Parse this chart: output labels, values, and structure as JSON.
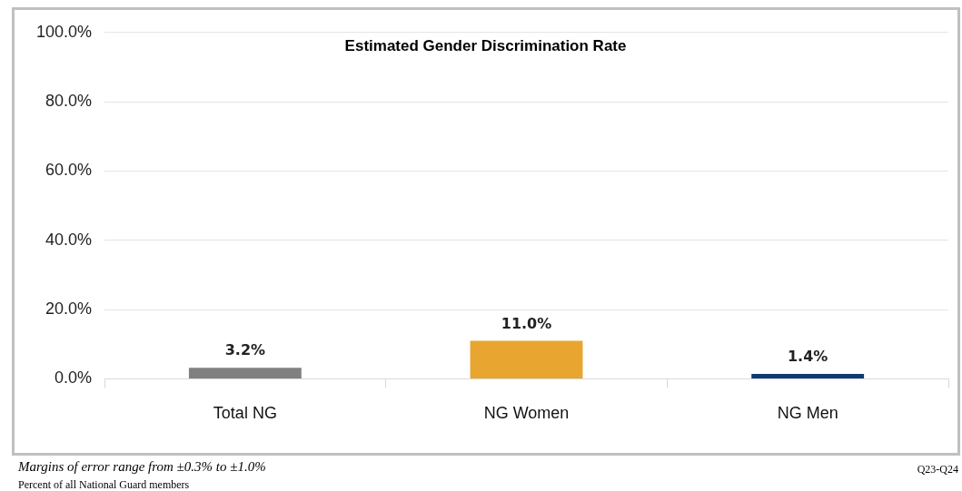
{
  "chart_data": {
    "type": "bar",
    "title": "Estimated Gender Discrimination Rate",
    "categories": [
      "Total NG",
      "NG Women",
      "NG Men"
    ],
    "values": [
      3.2,
      11.0,
      1.4
    ],
    "colors": [
      "#808080",
      "#e8a530",
      "#0f3a73"
    ],
    "value_labels": [
      "3.2%",
      "11.0%",
      "1.4%"
    ],
    "ylim": [
      0,
      100
    ],
    "yticks": [
      {
        "value": 0,
        "label": "0.0%"
      },
      {
        "value": 20,
        "label": "20.0%"
      },
      {
        "value": 40,
        "label": "40.0%"
      },
      {
        "value": 60,
        "label": "60.0%"
      },
      {
        "value": 80,
        "label": "80.0%"
      },
      {
        "value": 100,
        "label": "100.0%"
      }
    ],
    "grid": "y",
    "annotations": [
      "Margins of error range from ±0.3% to ±1.0%",
      "Percent of all National Guard members",
      "Q23-Q24"
    ]
  }
}
